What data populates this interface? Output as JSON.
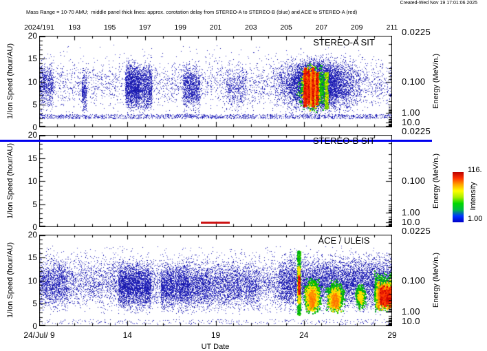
{
  "header": {
    "created": "Created-Wed Nov 19 17:01:06 2025",
    "subtitle": "Mass Range = 10-70 AMU;  middle panel thick lines: approx. corotation delay from STEREO-A to STEREO-B (blue) and ACE to STEREO-A (red)"
  },
  "chart_data": {
    "type": "heatmap",
    "x_axis": {
      "label": "UT Date",
      "range_days": [
        9,
        29
      ],
      "month_year": "July 2024",
      "bottom_major_days": [
        9,
        14,
        19,
        24,
        29
      ],
      "bottom_major_labels": [
        "24/Jul/ 9",
        "14",
        "19",
        "24",
        "29"
      ],
      "minor_step_days": 1,
      "top_major_days": [
        9,
        11,
        13,
        15,
        17,
        19,
        21,
        23,
        25,
        27,
        29
      ],
      "top_major_labels": [
        "2024/191",
        "193",
        "195",
        "197",
        "199",
        "201",
        "203",
        "205",
        "207",
        "209",
        "211"
      ]
    },
    "y_axis": {
      "label": "1/Ion Speed (hour/AU)",
      "range": [
        0,
        20
      ],
      "major_ticks": [
        0,
        5,
        10,
        15,
        20
      ],
      "minor_step": 1
    },
    "energy_axis": {
      "label": "Energy (MeV/n.)",
      "top_label": "0.0225",
      "labeled_ticks": [
        {
          "label": "0.100",
          "value": 0.1
        },
        {
          "label": "1.00",
          "value": 1
        },
        {
          "label": "10.0",
          "value": 10
        }
      ],
      "speed_from_energy": "s = sqrt(10/E)"
    },
    "colorbar": {
      "label": "Intensity",
      "max_label": "116.",
      "min_label": "1.00",
      "stops": [
        "#0000c8",
        "#0033ff",
        "#00bb44",
        "#00d800",
        "#aaee00",
        "#ffff00",
        "#ffa500",
        "#ff3300",
        "#bb0000"
      ]
    },
    "panels": [
      {
        "title": "STEREO-A SIT",
        "seed": 11,
        "clouds": [
          [
            9,
            29,
            1.9,
            2.8,
            1600,
            "b",
            0,
            0,
            1
          ],
          [
            9,
            29,
            2.2,
            16.8,
            3200,
            "b",
            0,
            1,
            1
          ],
          [
            9,
            29,
            15,
            18,
            70,
            "b",
            0,
            0,
            1
          ],
          [
            9,
            9.8,
            2.5,
            16,
            600,
            "b",
            0,
            1,
            1
          ],
          [
            11.42,
            11.68,
            2,
            13.5,
            320,
            "b",
            0,
            1,
            1
          ],
          [
            13.9,
            14.65,
            2,
            16,
            1600,
            "b",
            0,
            1,
            1
          ],
          [
            14.65,
            15.4,
            2,
            15.5,
            950,
            "b",
            0,
            1,
            1
          ],
          [
            17.15,
            18.1,
            2,
            15,
            950,
            "b",
            0,
            1,
            1
          ],
          [
            19.6,
            20.8,
            2.2,
            15,
            420,
            "b",
            0,
            1,
            1
          ],
          [
            21.8,
            27.9,
            2,
            16.5,
            6500,
            "b",
            1,
            1,
            1
          ],
          [
            22.9,
            26.3,
            2.5,
            16,
            2600,
            "b",
            1,
            1,
            1
          ],
          [
            23.5,
            25.5,
            3,
            14.5,
            950,
            "g",
            1,
            1,
            2
          ],
          [
            23.8,
            25.0,
            3.5,
            14,
            750,
            "y",
            1,
            1,
            2
          ],
          [
            23.95,
            24.85,
            4,
            13.5,
            520,
            "o",
            1,
            1,
            2
          ],
          [
            24.0,
            24.12,
            4.5,
            13,
            260,
            "r",
            0,
            0,
            2
          ],
          [
            24.2,
            24.3,
            5,
            12.5,
            220,
            "r",
            0,
            0,
            2
          ],
          [
            24.45,
            24.56,
            4.5,
            13,
            240,
            "r",
            0,
            0,
            2
          ],
          [
            24.68,
            24.8,
            5,
            12,
            200,
            "r",
            0,
            0,
            2
          ],
          [
            25.2,
            25.35,
            4,
            12,
            260,
            "gy",
            0,
            0,
            2
          ]
        ],
        "lines": []
      },
      {
        "title": "STEREO-B SIT",
        "seed": 22,
        "clouds": [],
        "lines": [
          {
            "color": "#0000ee",
            "value": 18.8,
            "full_width": true,
            "note": "approx. corotation delay STEREO-A to STEREO-B"
          },
          {
            "color": "#cc1111",
            "value": 1.0,
            "day_start": 18.15,
            "day_end": 19.8,
            "note": "approx. corotation delay ACE to STEREO-A"
          }
        ]
      },
      {
        "title": "ACE / ULEIS",
        "seed": 33,
        "clouds": [
          [
            9,
            29,
            0.4,
            1.5,
            300,
            "b",
            0,
            0,
            1
          ],
          [
            9,
            29,
            1.8,
            17,
            8500,
            "b",
            0,
            1,
            1
          ],
          [
            9,
            29,
            15,
            17.5,
            150,
            "b",
            0,
            0,
            1
          ],
          [
            9,
            10.6,
            2,
            16,
            900,
            "b",
            0,
            1,
            1
          ],
          [
            13.5,
            14.7,
            2,
            15.5,
            1800,
            "b",
            0,
            1,
            1
          ],
          [
            14.7,
            15.35,
            2,
            15,
            850,
            "b",
            0,
            1,
            1
          ],
          [
            15.9,
            16.65,
            2,
            15,
            850,
            "b",
            0,
            1,
            1
          ],
          [
            16.7,
            17.5,
            2,
            15.5,
            950,
            "b",
            0,
            1,
            1
          ],
          [
            17.5,
            18.5,
            2,
            15,
            750,
            "b",
            0,
            1,
            1
          ],
          [
            18.5,
            21.5,
            2,
            15,
            1300,
            "b",
            0,
            1,
            1
          ],
          [
            22.6,
            29,
            2,
            17,
            5000,
            "b",
            0,
            1,
            1
          ],
          [
            23.62,
            23.8,
            2.5,
            16.5,
            400,
            "g",
            0,
            0,
            2
          ],
          [
            23.65,
            23.78,
            5,
            13,
            230,
            "y",
            0,
            0,
            2
          ],
          [
            23.66,
            23.77,
            7,
            11,
            170,
            "r",
            0,
            0,
            2
          ],
          [
            23.9,
            25.05,
            2.5,
            11,
            1150,
            "g",
            1,
            1,
            2
          ],
          [
            24.0,
            24.9,
            3,
            9.5,
            680,
            "y",
            1,
            1,
            2
          ],
          [
            24.2,
            24.7,
            3.5,
            8.5,
            230,
            "o",
            1,
            1,
            2
          ],
          [
            25.15,
            26.4,
            2.5,
            10.5,
            1050,
            "g",
            1,
            1,
            2
          ],
          [
            25.3,
            26.2,
            3,
            9,
            540,
            "y",
            1,
            1,
            2
          ],
          [
            25.5,
            26.0,
            3.5,
            7.5,
            170,
            "o",
            1,
            1,
            2
          ],
          [
            26.85,
            27.55,
            3.5,
            9.5,
            540,
            "g",
            1,
            1,
            2
          ],
          [
            27.0,
            27.4,
            4.5,
            8,
            170,
            "y",
            1,
            1,
            2
          ],
          [
            28.0,
            29,
            2.5,
            12.5,
            800,
            "g",
            0,
            1,
            2
          ],
          [
            28.1,
            29,
            3,
            10.5,
            650,
            "y",
            0,
            1,
            2
          ],
          [
            28.2,
            29,
            3.5,
            10,
            480,
            "o",
            0,
            1,
            2
          ],
          [
            28.3,
            29,
            4,
            9.5,
            450,
            "r",
            0,
            1,
            2
          ]
        ],
        "lines": []
      }
    ]
  }
}
